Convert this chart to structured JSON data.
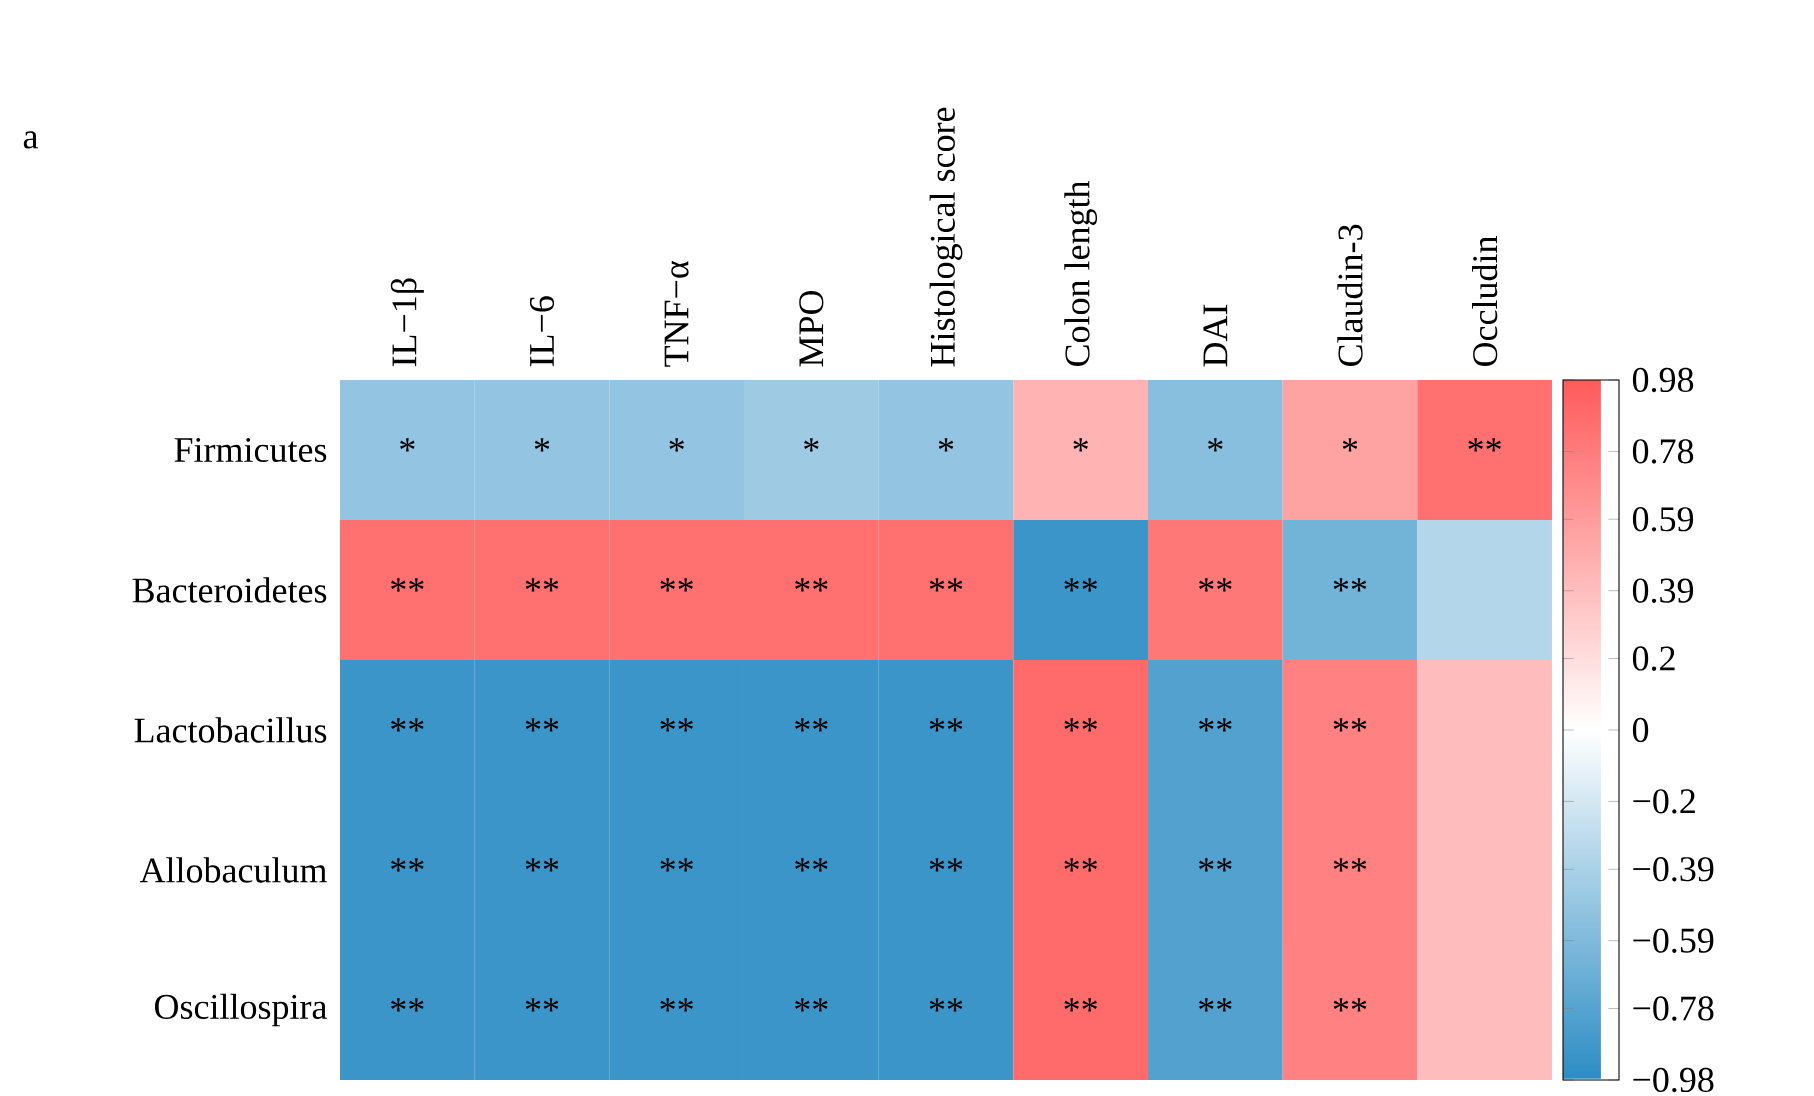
{
  "chart_data": {
    "type": "heatmap",
    "title": "a",
    "categories": [
      "IL−1β",
      "IL−6",
      "TNF−α",
      "MPO",
      "Histological score",
      "Colon length",
      "DAI",
      "Claudin-3",
      "Occludin"
    ],
    "y_categories": [
      "Firmicutes",
      "Bacteroidetes",
      "Lactobacillus",
      "Allobaculum",
      "Oscillospira"
    ],
    "cells": [
      [
        -0.5,
        -0.5,
        -0.5,
        -0.45,
        -0.5,
        0.45,
        -0.55,
        0.55,
        0.85
      ],
      [
        0.85,
        0.85,
        0.85,
        0.85,
        0.85,
        -0.9,
        0.8,
        -0.65,
        -0.35
      ],
      [
        -0.9,
        -0.9,
        -0.9,
        -0.9,
        -0.9,
        0.88,
        -0.8,
        0.75,
        0.4
      ],
      [
        -0.9,
        -0.9,
        -0.9,
        -0.9,
        -0.9,
        0.88,
        -0.8,
        0.75,
        0.4
      ],
      [
        -0.9,
        -0.9,
        -0.9,
        -0.9,
        -0.9,
        0.88,
        -0.8,
        0.75,
        0.4
      ]
    ],
    "cell_labels": [
      [
        "*",
        "*",
        "*",
        "*",
        "*",
        "*",
        "*",
        "*",
        "**"
      ],
      [
        "**",
        "**",
        "**",
        "**",
        "**",
        "**",
        "**",
        "**",
        null
      ],
      [
        "**",
        "**",
        "**",
        "**",
        "**",
        "**",
        "**",
        "**",
        null
      ],
      [
        "**",
        "**",
        "**",
        "**",
        "**",
        "**",
        "**",
        "**",
        null
      ],
      [
        "**",
        "**",
        "**",
        "**",
        "**",
        "**",
        "**",
        "**",
        null
      ]
    ],
    "colors": [
      "#2b8cc4",
      "#ffffff",
      "#ff5a5a"
    ],
    "clim": [
      -0.98,
      0.98
    ],
    "cticks": [
      0.98,
      0.78,
      0.59,
      0.39,
      0.2,
      0,
      {
        "value": -0.2,
        "label": "−0.2"
      },
      {
        "value": -0.39,
        "label": "−0.39"
      },
      {
        "value": -0.59,
        "label": "−0.59"
      },
      {
        "value": -0.78,
        "label": "−0.78"
      },
      {
        "value": -0.98,
        "label": "−0.98"
      }
    ]
  }
}
